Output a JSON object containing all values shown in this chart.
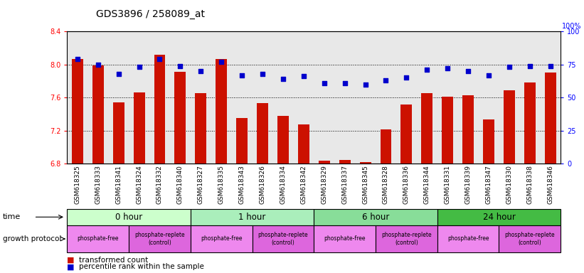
{
  "title": "GDS3896 / 258089_at",
  "samples": [
    "GSM618325",
    "GSM618333",
    "GSM618341",
    "GSM618324",
    "GSM618332",
    "GSM618340",
    "GSM618327",
    "GSM618335",
    "GSM618343",
    "GSM618326",
    "GSM618334",
    "GSM618342",
    "GSM618329",
    "GSM618337",
    "GSM618345",
    "GSM618328",
    "GSM618336",
    "GSM618344",
    "GSM618331",
    "GSM618339",
    "GSM618347",
    "GSM618330",
    "GSM618338",
    "GSM618346"
  ],
  "transformed_count": [
    8.07,
    7.99,
    7.54,
    7.66,
    8.12,
    7.91,
    7.65,
    8.07,
    7.35,
    7.53,
    7.38,
    7.28,
    6.84,
    6.85,
    6.82,
    7.22,
    7.52,
    7.65,
    7.61,
    7.63,
    7.34,
    7.69,
    7.78,
    7.9
  ],
  "percentile_rank": [
    79,
    75,
    68,
    73,
    79,
    74,
    70,
    77,
    67,
    68,
    64,
    66,
    61,
    61,
    60,
    63,
    65,
    71,
    72,
    70,
    67,
    73,
    74,
    74
  ],
  "time_groups": [
    {
      "label": "0 hour",
      "start": 0,
      "end": 6,
      "color": "#ccffcc"
    },
    {
      "label": "1 hour",
      "start": 6,
      "end": 12,
      "color": "#aaeebb"
    },
    {
      "label": "6 hour",
      "start": 12,
      "end": 18,
      "color": "#88dd99"
    },
    {
      "label": "24 hour",
      "start": 18,
      "end": 24,
      "color": "#44bb44"
    }
  ],
  "protocol_groups": [
    {
      "label": "phosphate-free",
      "start": 0,
      "end": 3,
      "color": "#ee88ee"
    },
    {
      "label": "phosphate-replete\n(control)",
      "start": 3,
      "end": 6,
      "color": "#dd66dd"
    },
    {
      "label": "phosphate-free",
      "start": 6,
      "end": 9,
      "color": "#ee88ee"
    },
    {
      "label": "phosphate-replete\n(control)",
      "start": 9,
      "end": 12,
      "color": "#dd66dd"
    },
    {
      "label": "phosphate-free",
      "start": 12,
      "end": 15,
      "color": "#ee88ee"
    },
    {
      "label": "phosphate-replete\n(control)",
      "start": 15,
      "end": 18,
      "color": "#dd66dd"
    },
    {
      "label": "phosphate-free",
      "start": 18,
      "end": 21,
      "color": "#ee88ee"
    },
    {
      "label": "phosphate-replete\n(control)",
      "start": 21,
      "end": 24,
      "color": "#dd66dd"
    }
  ],
  "ylim": [
    6.8,
    8.4
  ],
  "yticks_left": [
    6.8,
    7.2,
    7.6,
    8.0,
    8.4
  ],
  "yticks_right": [
    0,
    25,
    50,
    75,
    100
  ],
  "bar_color": "#cc1100",
  "dot_color": "#0000cc",
  "bg_color": "#e8e8e8",
  "title_fontsize": 10,
  "tick_fontsize": 7,
  "bar_width": 0.55
}
